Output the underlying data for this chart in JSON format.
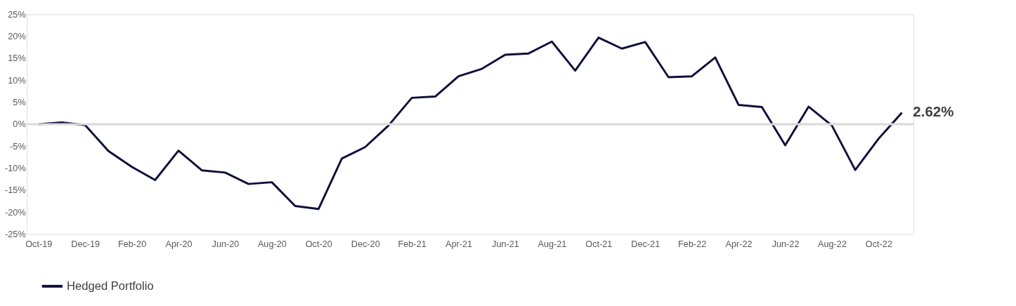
{
  "chart_data": {
    "type": "line",
    "categories": [
      "Oct-19",
      null,
      "Dec-19",
      null,
      "Feb-20",
      null,
      "Apr-20",
      null,
      "Jun-20",
      null,
      "Aug-20",
      null,
      "Oct-20",
      null,
      "Dec-20",
      null,
      "Feb-21",
      null,
      "Apr-21",
      null,
      "Jun-21",
      null,
      "Aug-21",
      null,
      "Oct-21",
      null,
      "Dec-21",
      null,
      "Feb-22",
      null,
      "Apr-22",
      null,
      "Jun-22",
      null,
      "Aug-22",
      null,
      "Oct-22",
      null
    ],
    "series": [
      {
        "name": "Hedged Portfolio",
        "color": "#0d0f3a",
        "values": [
          0,
          0.4,
          -0.2,
          -6.1,
          -9.7,
          -12.7,
          -6.0,
          -10.5,
          -11.0,
          -13.6,
          -13.2,
          -18.6,
          -19.3,
          -7.8,
          -5.2,
          -0.3,
          6.0,
          6.3,
          10.9,
          12.6,
          15.8,
          16.1,
          18.8,
          12.2,
          19.7,
          17.2,
          18.7,
          10.7,
          10.9,
          15.2,
          4.4,
          3.9,
          -4.8,
          4.0,
          -0.3,
          -10.4,
          -3.3,
          2.62
        ]
      }
    ],
    "ylim": [
      -25,
      25
    ],
    "yticks": [
      {
        "value": -25,
        "label": "-25%"
      },
      {
        "value": -20,
        "label": "-20%"
      },
      {
        "value": -15,
        "label": "-15%"
      },
      {
        "value": -10,
        "label": "-10%"
      },
      {
        "value": -5,
        "label": "-5%"
      },
      {
        "value": 0,
        "label": "0%"
      },
      {
        "value": 5,
        "label": "5%"
      },
      {
        "value": 10,
        "label": "10%"
      },
      {
        "value": 15,
        "label": "15%"
      },
      {
        "value": 20,
        "label": "20%"
      },
      {
        "value": 25,
        "label": "25%"
      }
    ],
    "ref_lines": [
      {
        "axis": "y",
        "value": 0,
        "color": "#d9d9d9"
      }
    ],
    "annotations": [
      "2.62%"
    ],
    "grid": false,
    "legend": "bottom",
    "marker": "none",
    "line_style": "solid"
  }
}
